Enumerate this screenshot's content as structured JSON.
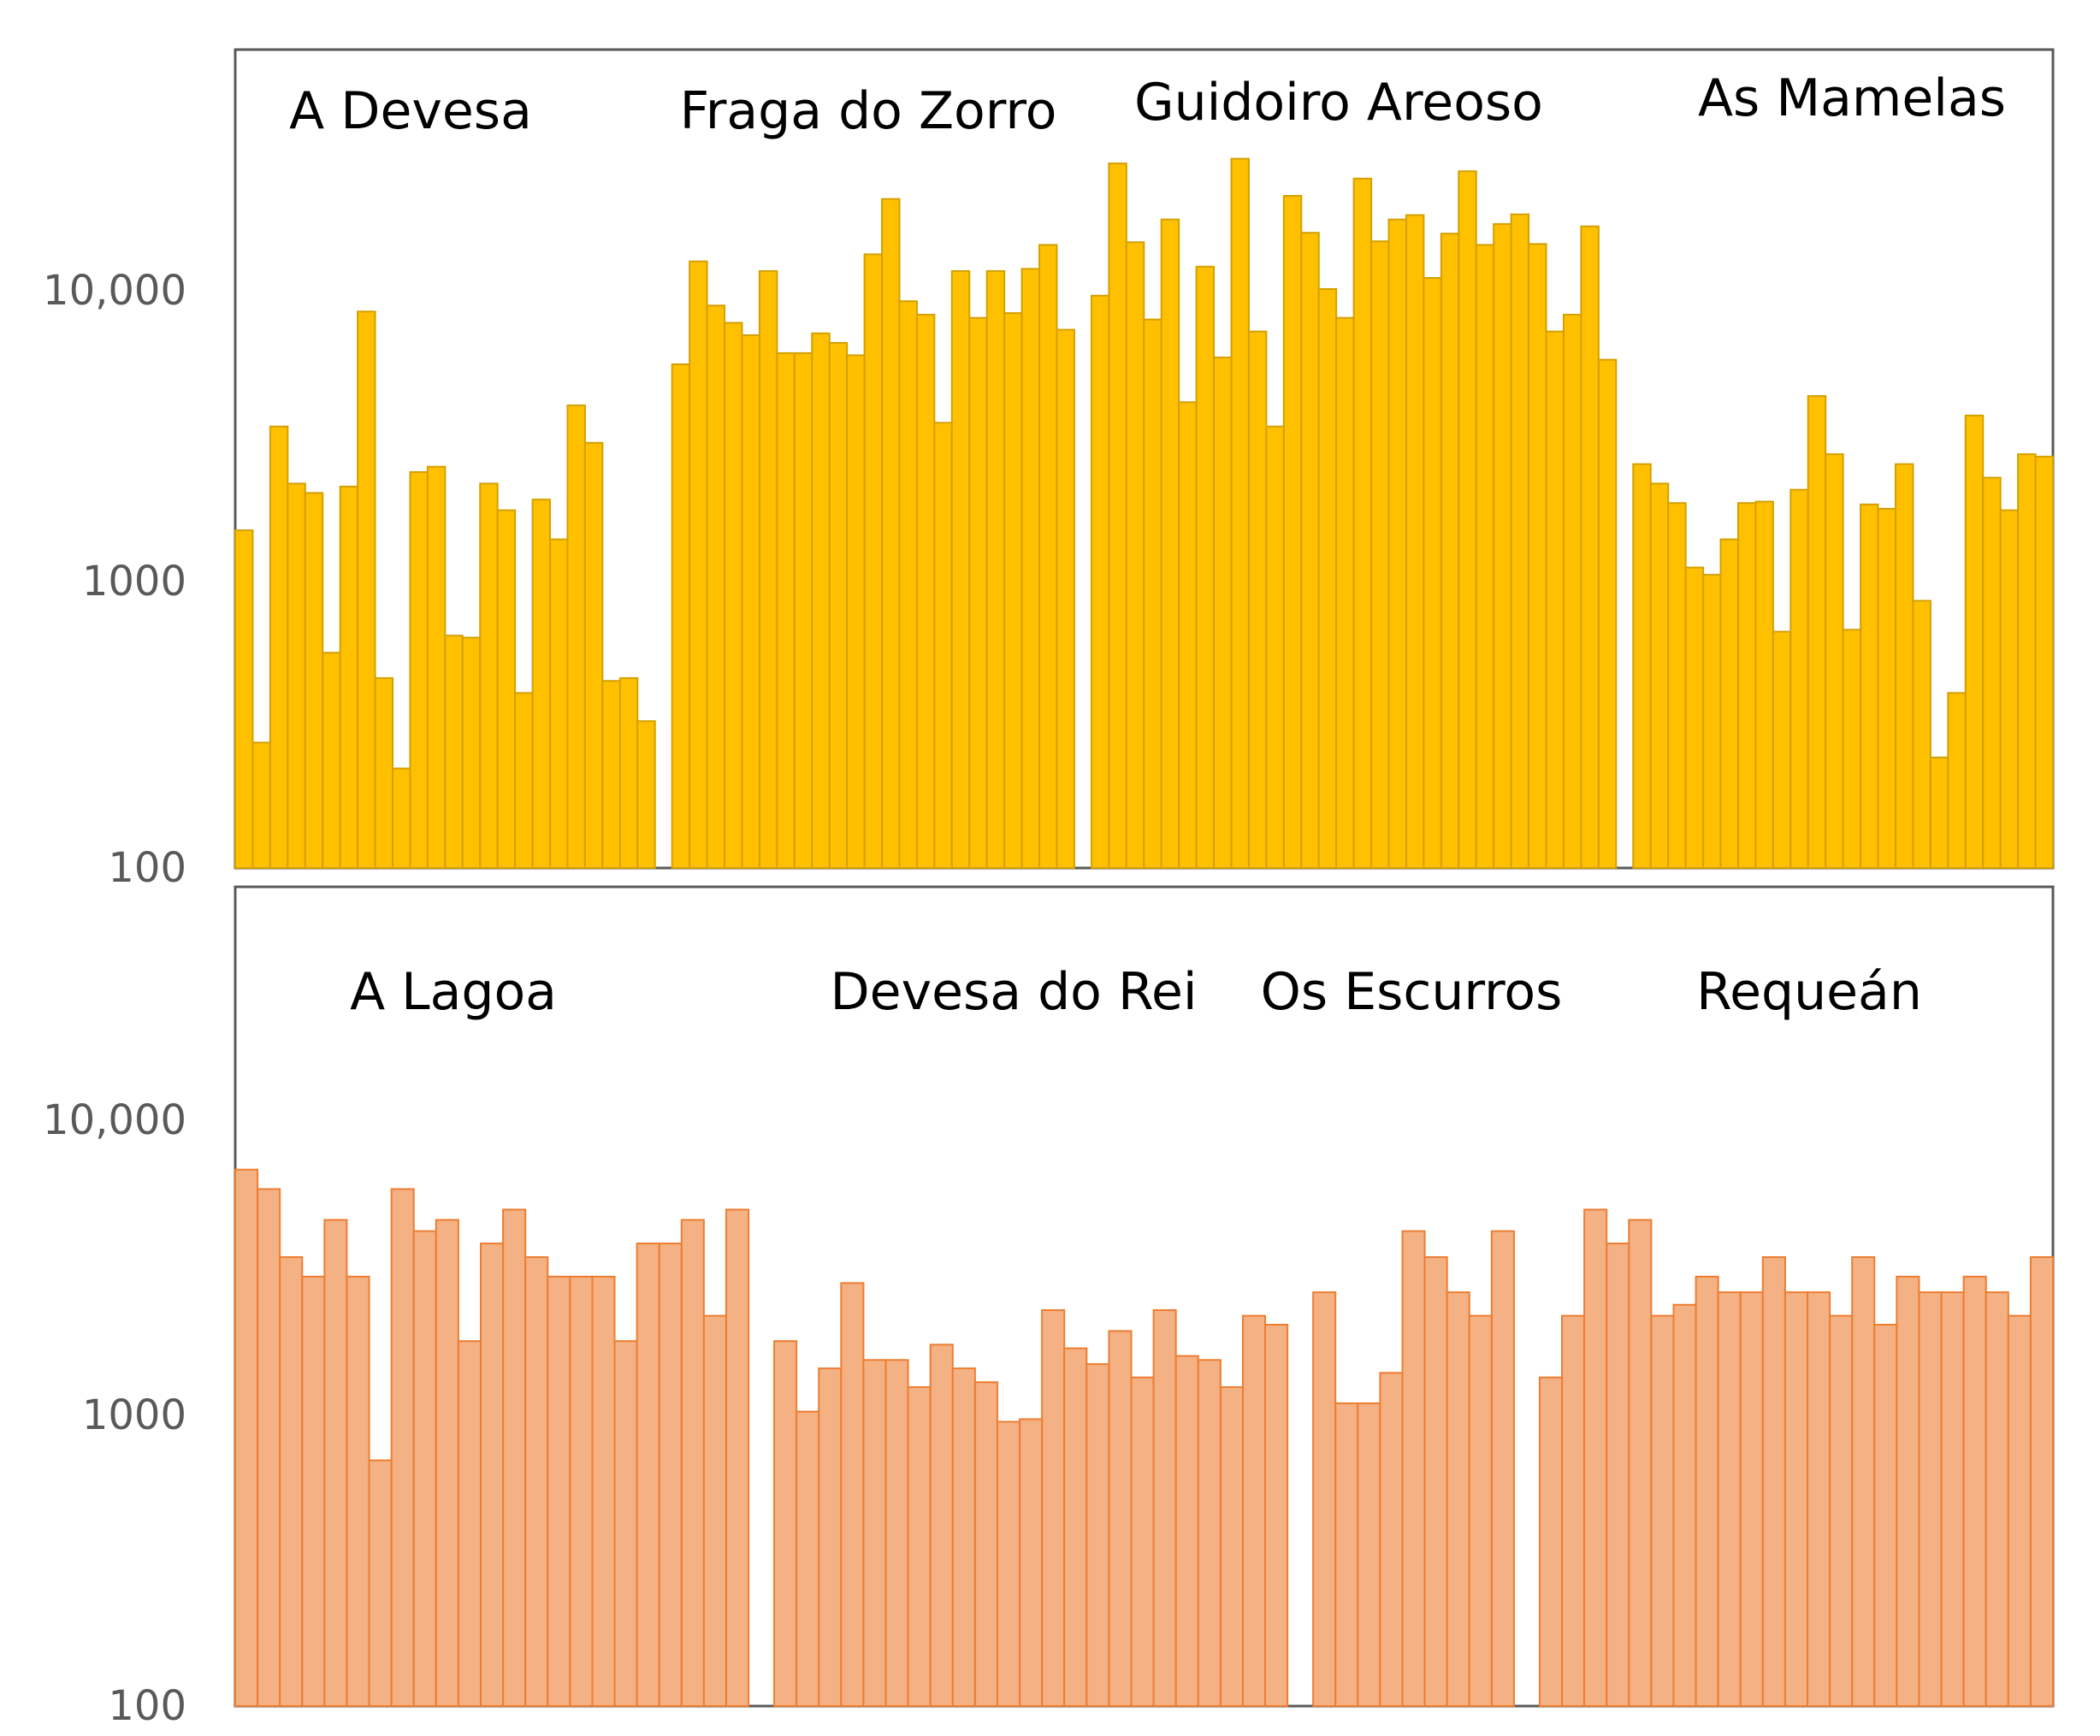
{
  "chart_data": [
    {
      "type": "bar",
      "yscale": "log",
      "ylim": [
        100,
        100000
      ],
      "yticks": [
        "100",
        "1000",
        "10,000"
      ],
      "colors": {
        "fill": "#FFC000",
        "stroke": "#D4A000"
      },
      "groups": [
        {
          "label": "A Devesa",
          "values": [
            1450,
            270,
            3300,
            2100,
            1950,
            550,
            2050,
            8200,
            450,
            220,
            2300,
            2400,
            630,
            620,
            2100,
            1700,
            400,
            1850,
            1350,
            3900,
            2900,
            440,
            450,
            320
          ]
        },
        {
          "label": "Fraga do Zorro",
          "values": [
            5400,
            12200,
            8600,
            7500,
            6800,
            11300,
            5900,
            5900,
            6900,
            6400,
            5800,
            12900,
            20000,
            8900,
            8000,
            3400,
            11300,
            7800,
            11300,
            8100,
            11500,
            13900,
            7100
          ]
        },
        {
          "label": "Guidoiro Areoso",
          "values": [
            9300,
            26500,
            14200,
            7700,
            17000,
            4000,
            11700,
            5700,
            27500,
            7000,
            3300,
            20500,
            15300,
            9800,
            7800,
            23500,
            14300,
            17000,
            17600,
            10700,
            15200,
            24900,
            13900,
            16400,
            17700,
            14000,
            7000,
            8000,
            16100,
            5600
          ]
        },
        {
          "label": "As Mamelas",
          "values": [
            2450,
            2100,
            1800,
            1080,
            1020,
            1350,
            1800,
            1820,
            650,
            2000,
            4200,
            2650,
            660,
            1780,
            1720,
            2450,
            830,
            240,
            400,
            3600,
            2200,
            1700,
            2650,
            2600
          ]
        }
      ]
    },
    {
      "type": "bar",
      "yscale": "log",
      "ylim": [
        100,
        100000
      ],
      "yticks": [
        "100",
        "1000",
        "10,000"
      ],
      "colors": {
        "fill": "#F4B183",
        "stroke": "#ED7D31"
      },
      "groups": [
        {
          "label": "A Lagoa",
          "values": [
            7000,
            6000,
            3500,
            3000,
            4700,
            3000,
            700,
            6000,
            4300,
            4700,
            1800,
            3900,
            5100,
            3500,
            3000,
            3000,
            3000,
            1800,
            3900,
            3900,
            4700,
            2200,
            5100
          ]
        },
        {
          "label": "Devesa do Rei",
          "values": [
            1800,
            1030,
            1450,
            2850,
            1550,
            1550,
            1250,
            1750,
            1450,
            1300,
            950,
            970,
            2300,
            1700,
            1500,
            1950,
            1350,
            2300,
            1600,
            1550,
            1250,
            2200,
            2050
          ]
        },
        {
          "label": "Os Escurros",
          "values": [
            2650,
            1100,
            1100,
            1400,
            4300,
            3500,
            2650,
            2200,
            4300
          ]
        },
        {
          "label": "Requeán",
          "values": [
            1350,
            2200,
            5100,
            3900,
            4700,
            2200,
            2400,
            3000,
            2650,
            2650,
            3500,
            2650,
            2650,
            2200,
            3500,
            2050,
            3000,
            2650,
            2650,
            3000,
            2650,
            2200,
            3500
          ]
        }
      ]
    }
  ]
}
